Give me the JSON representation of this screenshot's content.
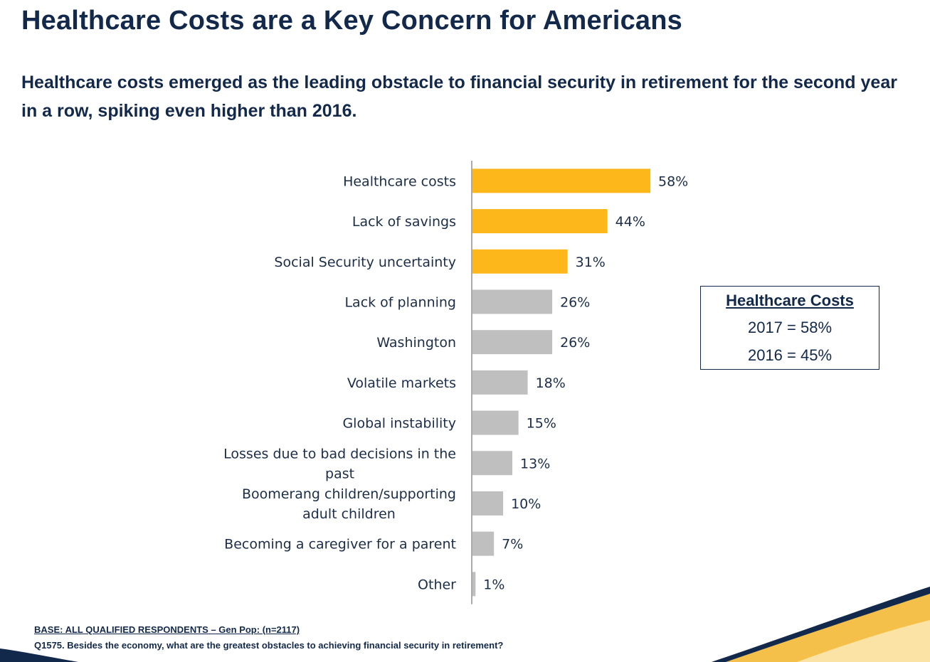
{
  "slide": {
    "title": "Healthcare Costs are a Key Concern for Americans",
    "subtitle": "Healthcare costs emerged as the leading obstacle to financial security in retirement for the second year in a row, spiking even higher than 2016."
  },
  "chart_data": {
    "type": "bar",
    "orientation": "horizontal",
    "categories": [
      [
        "Healthcare costs"
      ],
      [
        "Lack of savings"
      ],
      [
        "Social Security uncertainty"
      ],
      [
        "Lack of planning"
      ],
      [
        "Washington"
      ],
      [
        "Volatile markets"
      ],
      [
        "Global instability"
      ],
      [
        "Losses due to bad decisions in the",
        "past"
      ],
      [
        "Boomerang children/supporting",
        "adult children"
      ],
      [
        "Becoming a caregiver for a parent"
      ],
      [
        "Other"
      ]
    ],
    "values": [
      58,
      44,
      31,
      26,
      26,
      18,
      15,
      13,
      10,
      7,
      1
    ],
    "value_labels": [
      "58%",
      "44%",
      "31%",
      "26%",
      "26%",
      "18%",
      "15%",
      "13%",
      "10%",
      "7%",
      "1%"
    ],
    "highlight_count": 3,
    "colors": {
      "highlight": "#FDB71A",
      "default": "#BFBFBF",
      "axis": "#555555"
    },
    "grid": false,
    "legend": "none"
  },
  "callout": {
    "title": "Healthcare Costs",
    "line1": "2017 = 58%",
    "line2": "2016 = 45%"
  },
  "footer": {
    "base": "BASE: ALL QUALIFIED RESPONDENTS – Gen Pop: (n=2117)",
    "question": "Q1575. Besides the economy, what are the greatest obstacles to achieving financial security in retirement?"
  },
  "decor": {
    "navy": "#13294B",
    "gold": "#F5C04A",
    "light_gold": "#FBE3A6"
  }
}
